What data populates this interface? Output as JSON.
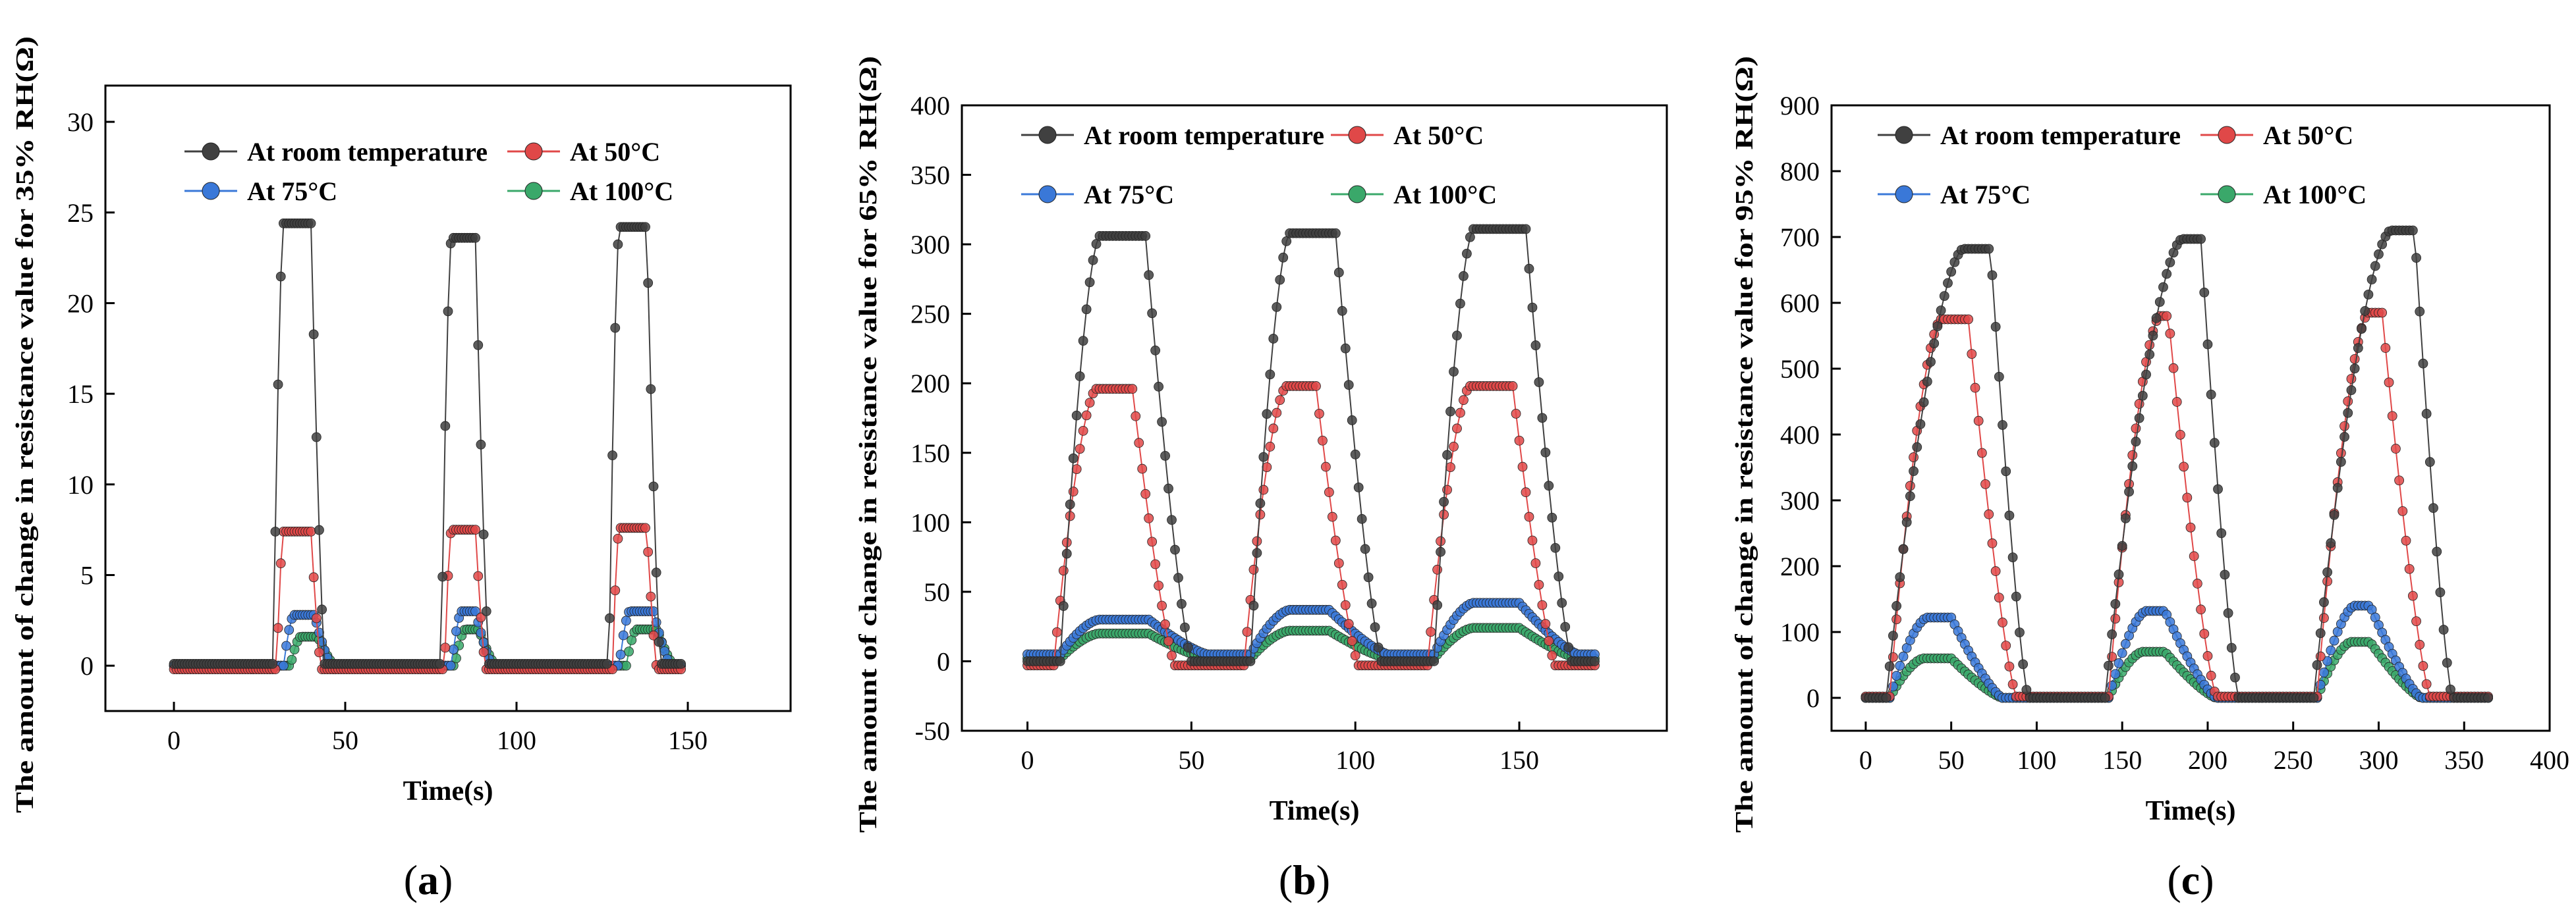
{
  "colors": {
    "room": "#404040",
    "c50": "#e04848",
    "c75": "#3a78d8",
    "c100": "#3aa86a",
    "axis": "#000000"
  },
  "legend_labels": [
    "At room temperature",
    "At 50°C",
    "At 75°C",
    "At 100°C"
  ],
  "captions": {
    "a": {
      "open": "(",
      "letter": "a",
      "close": ")"
    },
    "b": {
      "open": "(",
      "letter": "b",
      "close": ")"
    },
    "c": {
      "open": "(",
      "letter": "c",
      "close": ")"
    }
  },
  "chart_data": [
    {
      "id": "a",
      "type": "scatter",
      "title": "",
      "xlabel": "Time(s)",
      "ylabel": "The amount of change in resistance value for 35% RH(Ω)",
      "xlim": [
        -20,
        180
      ],
      "ylim": [
        -2.5,
        32
      ],
      "xticks": [
        0,
        50,
        100,
        150
      ],
      "yticks": [
        0,
        5,
        10,
        15,
        20,
        25,
        30
      ],
      "legend": "top",
      "series": [
        {
          "name": "At room temperature",
          "color_key": "room",
          "baseline": 0.1,
          "pulses": [
            [
              29,
              44,
              24.4
            ],
            [
              78,
              92,
              23.6
            ],
            [
              127,
              142,
              24.2
            ]
          ],
          "xmax": 148,
          "rise": 3,
          "fall": 4,
          "dx": 0.8
        },
        {
          "name": "At 50°C",
          "color_key": "c50",
          "baseline": -0.2,
          "pulses": [
            [
              30,
              43,
              7.4
            ],
            [
              79,
              91,
              7.5
            ],
            [
              128,
              141,
              7.6
            ]
          ],
          "xmax": 148,
          "rise": 2,
          "fall": 3,
          "dx": 0.8
        },
        {
          "name": "At 75°C",
          "color_key": "c75",
          "baseline": 0.0,
          "pulses": [
            [
              32,
              46,
              2.8
            ],
            [
              81,
              93,
              3.0
            ],
            [
              130,
              145,
              3.0
            ]
          ],
          "xmax": 148,
          "rise": 3,
          "fall": 5,
          "dx": 0.8
        },
        {
          "name": "At 100°C",
          "color_key": "c100",
          "baseline": 0.0,
          "pulses": [
            [
              34,
              47,
              1.6
            ],
            [
              82,
              94,
              2.0
            ],
            [
              132,
              146,
              2.0
            ]
          ],
          "xmax": 148,
          "rise": 3,
          "fall": 5,
          "dx": 0.8
        }
      ]
    },
    {
      "id": "b",
      "type": "scatter",
      "title": "",
      "xlabel": "Time(s)",
      "ylabel": "The amount of change in resistance value for 65% RH(Ω)",
      "xlim": [
        -20,
        195
      ],
      "ylim": [
        -50,
        400
      ],
      "xticks": [
        0,
        50,
        100,
        150
      ],
      "yticks": [
        -50,
        0,
        50,
        100,
        150,
        200,
        250,
        300,
        350,
        400
      ],
      "legend": "top",
      "series": [
        {
          "name": "At room temperature",
          "color_key": "room",
          "baseline": 0,
          "pulses": [
            [
              10,
              50,
              306
            ],
            [
              68,
              108,
              308
            ],
            [
              124,
              166,
              311
            ]
          ],
          "xmax": 173,
          "rise": 12,
          "fall": 14,
          "dx": 1.0
        },
        {
          "name": "At 50°C",
          "color_key": "c50",
          "baseline": -3,
          "pulses": [
            [
              8,
              45,
              196
            ],
            [
              66,
              101,
              198
            ],
            [
              122,
              161,
              198
            ]
          ],
          "xmax": 173,
          "rise": 13,
          "fall": 13,
          "dx": 1.0
        },
        {
          "name": "At 75°C",
          "color_key": "c75",
          "baseline": 5,
          "pulses": [
            [
              10,
              55,
              30
            ],
            [
              68,
              110,
              37
            ],
            [
              124,
              168,
              42
            ]
          ],
          "xmax": 173,
          "rise": 12,
          "fall": 18,
          "dx": 1.0
        },
        {
          "name": "At 100°C",
          "color_key": "c100",
          "baseline": 2,
          "pulses": [
            [
              10,
              55,
              20
            ],
            [
              68,
              110,
              22
            ],
            [
              124,
              168,
              24
            ]
          ],
          "xmax": 173,
          "rise": 12,
          "fall": 18,
          "dx": 1.0
        }
      ]
    },
    {
      "id": "c",
      "type": "scatter",
      "title": "",
      "xlabel": "Time(s)",
      "ylabel": "The amount of change in resistance value for 95% RH(Ω)",
      "xlim": [
        -20,
        400
      ],
      "ylim": [
        -50,
        900
      ],
      "xticks": [
        0,
        50,
        100,
        150,
        200,
        250,
        300,
        350,
        400
      ],
      "yticks": [
        0,
        100,
        200,
        300,
        400,
        500,
        600,
        700,
        800,
        900
      ],
      "legend": "top",
      "series": [
        {
          "name": "At room temperature",
          "color_key": "room",
          "baseline": 0,
          "pulses": [
            [
              12,
              95,
              682
            ],
            [
              140,
              218,
              697
            ],
            [
              262,
              343,
              710
            ]
          ],
          "xmax": 365,
          "rise": 45,
          "fall": 22,
          "dx": 2.0
        },
        {
          "name": "At 50°C",
          "color_key": "c50",
          "baseline": 2,
          "pulses": [
            [
              14,
              88,
              575
            ],
            [
              142,
              205,
              580
            ],
            [
              264,
              330,
              585
            ]
          ],
          "xmax": 365,
          "rise": 30,
          "fall": 28,
          "dx": 2.0
        },
        {
          "name": "At 75°C",
          "color_key": "c75",
          "baseline": 0,
          "pulses": [
            [
              14,
              80,
              122
            ],
            [
              142,
              205,
              132
            ],
            [
              264,
              325,
              140
            ]
          ],
          "xmax": 365,
          "rise": 22,
          "fall": 30,
          "dx": 2.0
        },
        {
          "name": "At 100°C",
          "color_key": "c100",
          "baseline": 0,
          "pulses": [
            [
              14,
              80,
              60
            ],
            [
              142,
              205,
              70
            ],
            [
              264,
              325,
              85
            ]
          ],
          "xmax": 365,
          "rise": 20,
          "fall": 30,
          "dx": 2.0
        }
      ]
    }
  ]
}
